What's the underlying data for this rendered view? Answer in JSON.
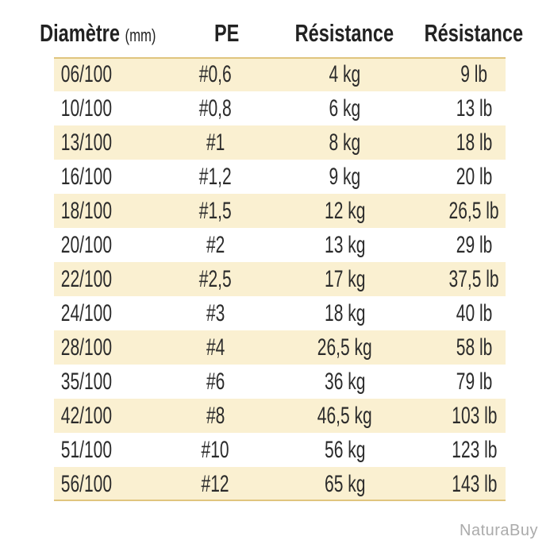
{
  "header": {
    "columns": [
      {
        "label": "Diamètre",
        "sub": "(mm)"
      },
      {
        "label": "PE",
        "sub": ""
      },
      {
        "label": "Résistance",
        "sub": ""
      },
      {
        "label": "Résistance",
        "sub": ""
      }
    ]
  },
  "table": {
    "rows": [
      {
        "diameter": "06/100",
        "pe": "#0,6",
        "kg": "4 kg",
        "lb": "9 lb"
      },
      {
        "diameter": "10/100",
        "pe": "#0,8",
        "kg": "6 kg",
        "lb": "13 lb"
      },
      {
        "diameter": "13/100",
        "pe": "#1",
        "kg": "8 kg",
        "lb": "18 lb"
      },
      {
        "diameter": "16/100",
        "pe": "#1,2",
        "kg": "9 kg",
        "lb": "20 lb"
      },
      {
        "diameter": "18/100",
        "pe": "#1,5",
        "kg": "12 kg",
        "lb": "26,5 lb"
      },
      {
        "diameter": "20/100",
        "pe": "#2",
        "kg": "13 kg",
        "lb": "29 lb"
      },
      {
        "diameter": "22/100",
        "pe": "#2,5",
        "kg": "17 kg",
        "lb": "37,5 lb"
      },
      {
        "diameter": "24/100",
        "pe": "#3",
        "kg": "18 kg",
        "lb": "40 lb"
      },
      {
        "diameter": "28/100",
        "pe": "#4",
        "kg": "26,5 kg",
        "lb": "58 lb"
      },
      {
        "diameter": "35/100",
        "pe": "#6",
        "kg": "36 kg",
        "lb": "79 lb"
      },
      {
        "diameter": "42/100",
        "pe": "#8",
        "kg": "46,5 kg",
        "lb": "103 lb"
      },
      {
        "diameter": "51/100",
        "pe": "#10",
        "kg": "56 kg",
        "lb": "123 lb"
      },
      {
        "diameter": "56/100",
        "pe": "#12",
        "kg": "65 kg",
        "lb": "143 lb"
      }
    ]
  },
  "watermark": "NaturaBuy",
  "colors": {
    "row_highlight": "#FAF0D1",
    "border_gold": "#E0C57E",
    "text": "#2B2B2B",
    "watermark": "#ABABAB"
  },
  "chart_data": {
    "type": "table",
    "title": "",
    "columns": [
      "Diamètre (mm)",
      "PE",
      "Résistance",
      "Résistance"
    ],
    "rows": [
      [
        "06/100",
        "#0,6",
        "4 kg",
        "9 lb"
      ],
      [
        "10/100",
        "#0,8",
        "6 kg",
        "13 lb"
      ],
      [
        "13/100",
        "#1",
        "8 kg",
        "18 lb"
      ],
      [
        "16/100",
        "#1,2",
        "9 kg",
        "20 lb"
      ],
      [
        "18/100",
        "#1,5",
        "12 kg",
        "26,5 lb"
      ],
      [
        "20/100",
        "#2",
        "13 kg",
        "29 lb"
      ],
      [
        "22/100",
        "#2,5",
        "17 kg",
        "37,5 lb"
      ],
      [
        "24/100",
        "#3",
        "18 kg",
        "40 lb"
      ],
      [
        "28/100",
        "#4",
        "26,5 kg",
        "58 lb"
      ],
      [
        "35/100",
        "#6",
        "36 kg",
        "79 lb"
      ],
      [
        "42/100",
        "#8",
        "46,5 kg",
        "103 lb"
      ],
      [
        "51/100",
        "#10",
        "56 kg",
        "123 lb"
      ],
      [
        "56/100",
        "#12",
        "65 kg",
        "143 lb"
      ]
    ],
    "layout_hints": {
      "alternating_row_highlight": "odd rows cream",
      "top_bottom_border": "gold 2px",
      "text_alignment": "center"
    }
  }
}
